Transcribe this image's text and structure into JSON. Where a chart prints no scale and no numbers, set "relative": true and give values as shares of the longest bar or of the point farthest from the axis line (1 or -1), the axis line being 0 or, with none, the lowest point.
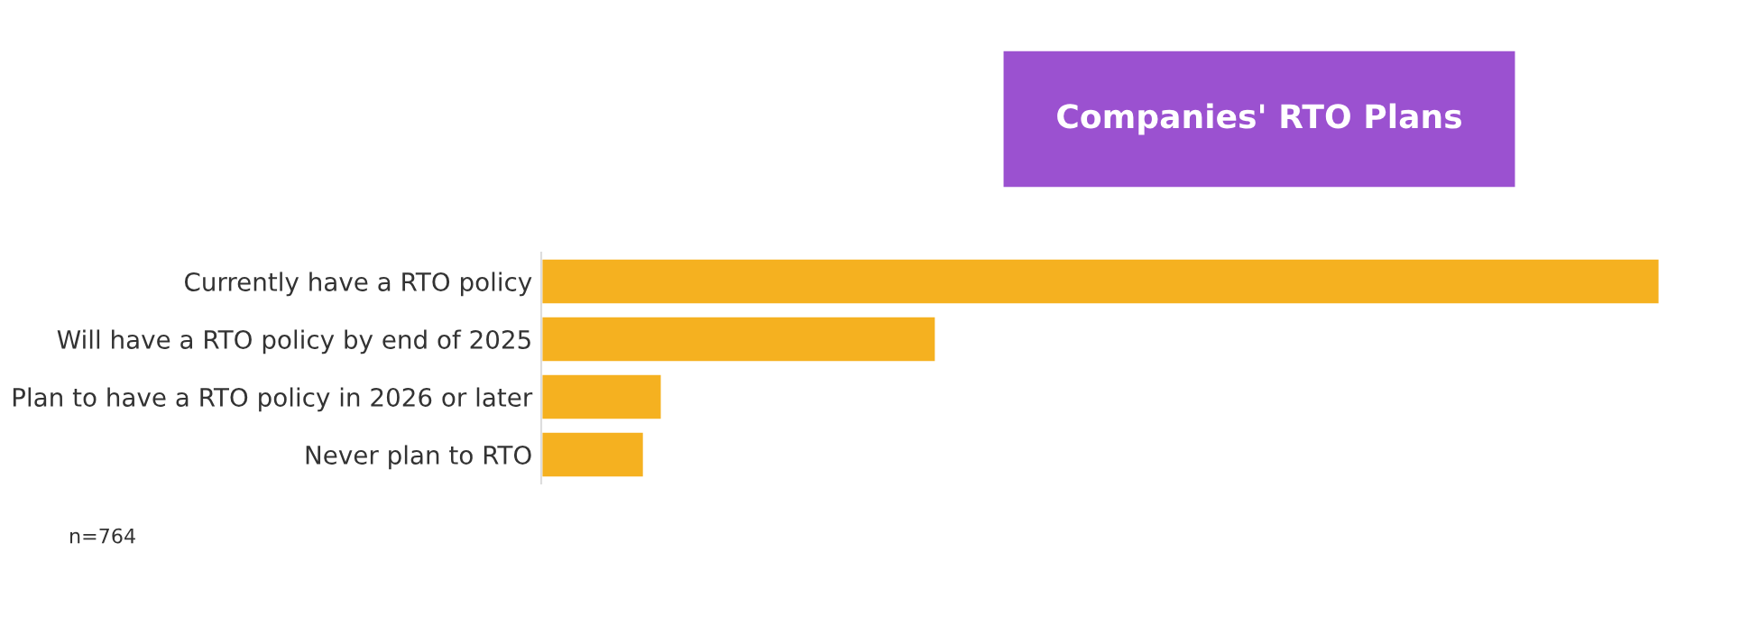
{
  "chart_data": {
    "type": "bar",
    "orientation": "horizontal",
    "relative": true,
    "title": "Companies' RTO Plans",
    "categories": [
      "Currently have a RTO policy",
      "Will have a RTO policy by end of 2025",
      "Plan to have a RTO policy in 2026 or later",
      "Never plan to RTO"
    ],
    "values": [
      1,
      0.353,
      0.108,
      0.092
    ],
    "color": "#f5b120",
    "annotations": [
      "n=764"
    ],
    "grid": false,
    "legend": false
  }
}
